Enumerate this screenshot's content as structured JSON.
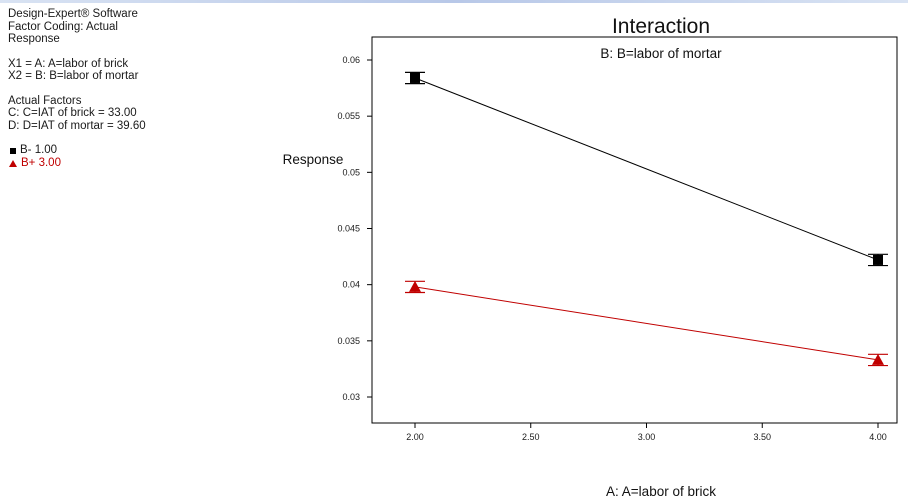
{
  "info": {
    "software": "Design-Expert® Software",
    "coding": "Factor Coding: Actual",
    "response": "Response",
    "x1": "X1 = A: A=labor of brick",
    "x2": "X2 = B: B=labor of mortar",
    "actual_factors_heading": "Actual Factors",
    "factor_c": "C: C=IAT of brick = 33.00",
    "factor_d": "D: D=IAT of mortar = 39.60",
    "legend": [
      {
        "label": "B- 1.00",
        "color": "#000000",
        "marker": "square-icon"
      },
      {
        "label": "B+ 3.00",
        "color": "#c00000",
        "marker": "triangle-icon"
      }
    ]
  },
  "chart_data": {
    "type": "line",
    "title": "Interaction",
    "subtitle": "B: B=labor of mortar",
    "xlabel": "A: A=labor of brick",
    "ylabel": "Response",
    "xlim": [
      2.0,
      4.0
    ],
    "ylim": [
      0.03,
      0.06
    ],
    "x_ticks": [
      "2.00",
      "2.50",
      "3.00",
      "3.50",
      "4.00"
    ],
    "y_ticks": [
      "0.03",
      "0.035",
      "0.04",
      "0.045",
      "0.05",
      "0.055",
      "0.06"
    ],
    "x": [
      2.0,
      4.0
    ],
    "series": [
      {
        "color": "#000000",
        "marker": "square",
        "values": [
          0.0584,
          0.0422
        ],
        "err": [
          0.0005,
          0.0005
        ]
      },
      {
        "color": "#c00000",
        "marker": "triangle",
        "values": [
          0.0398,
          0.0333
        ],
        "err": [
          0.0005,
          0.0005
        ]
      }
    ],
    "grid": false,
    "legend_placement": "left"
  }
}
